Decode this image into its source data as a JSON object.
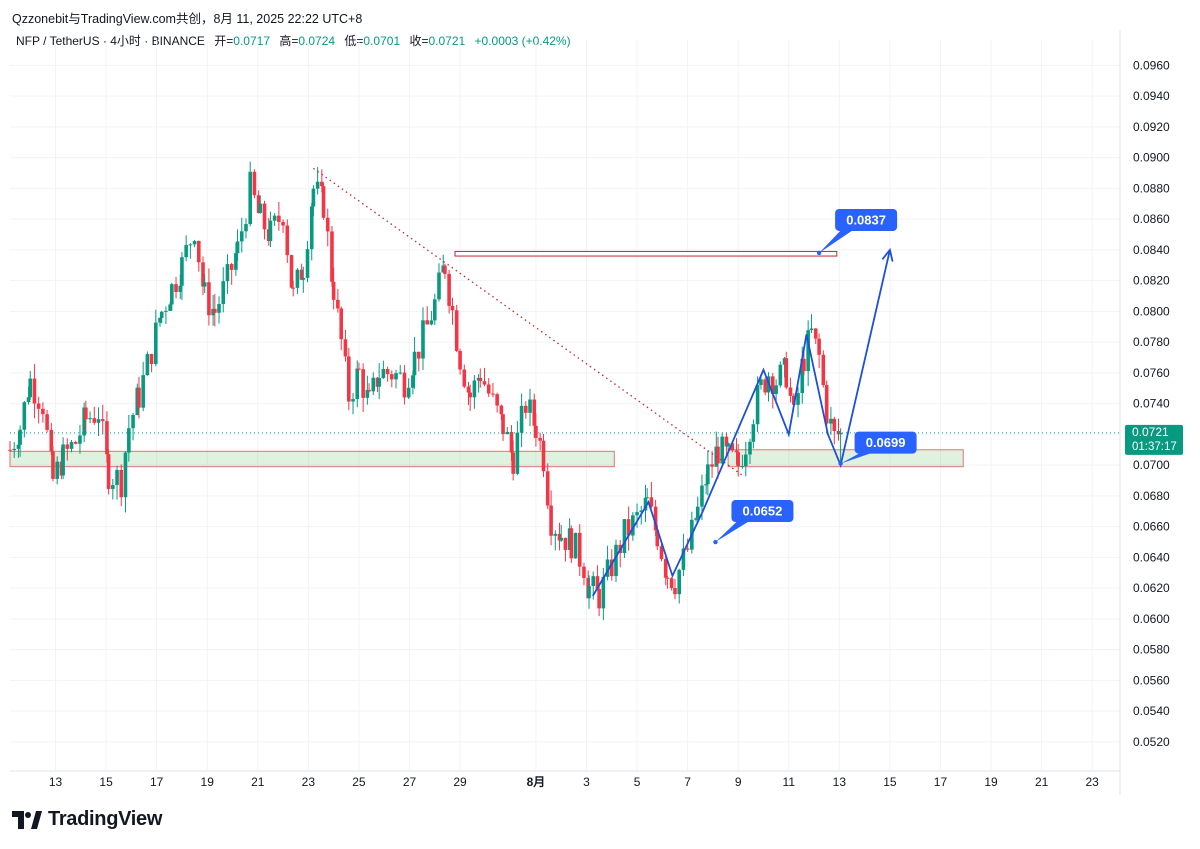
{
  "header": {
    "source_line": "Qzzonebit与TradingView.com共创，8月 11, 2025 22:22 UTC+8",
    "symbol": "NFP / TetherUS · 4小时 · BINANCE",
    "open_label": "开=",
    "open": "0.0717",
    "high_label": "高=",
    "high": "0.0724",
    "low_label": "低=",
    "low": "0.0701",
    "close_label": "收=",
    "close": "0.0721",
    "change": "+0.0003 (+0.42%)"
  },
  "price_badge": {
    "price": "0.0721",
    "countdown": "01:37:17"
  },
  "colors": {
    "up": "#089981",
    "down": "#f23645",
    "accent": "#2962ff",
    "trend": "#c62828"
  },
  "footer": {
    "brand": "TradingView",
    "logo_icon": "tradingview-logo-icon"
  },
  "chart_data": {
    "type": "candlestick",
    "title": "NFP / TetherUS · 4小时 · BINANCE",
    "ylim": [
      0.0505,
      0.097
    ],
    "y_ticks": [
      "0.0960",
      "0.0940",
      "0.0920",
      "0.0900",
      "0.0880",
      "0.0860",
      "0.0840",
      "0.0820",
      "0.0800",
      "0.0780",
      "0.0760",
      "0.0740",
      "0.0720",
      "0.0700",
      "0.0680",
      "0.0660",
      "0.0640",
      "0.0620",
      "0.0600",
      "0.0580",
      "0.0560",
      "0.0540",
      "0.0520"
    ],
    "x_ticks": [
      {
        "label": "13",
        "day": 13
      },
      {
        "label": "15",
        "day": 15
      },
      {
        "label": "17",
        "day": 17
      },
      {
        "label": "19",
        "day": 19
      },
      {
        "label": "21",
        "day": 21
      },
      {
        "label": "23",
        "day": 23
      },
      {
        "label": "25",
        "day": 25
      },
      {
        "label": "27",
        "day": 27
      },
      {
        "label": "29",
        "day": 29
      },
      {
        "label": "8月",
        "day": 32
      },
      {
        "label": "3",
        "day": 34
      },
      {
        "label": "5",
        "day": 36
      },
      {
        "label": "7",
        "day": 38
      },
      {
        "label": "9",
        "day": 40
      },
      {
        "label": "11",
        "day": 42
      },
      {
        "label": "13",
        "day": 44
      },
      {
        "label": "15",
        "day": 46
      },
      {
        "label": "17",
        "day": 48
      },
      {
        "label": "19",
        "day": 50
      },
      {
        "label": "21",
        "day": 52
      },
      {
        "label": "23",
        "day": 54
      }
    ],
    "x_range_days": [
      11.2,
      55.1
    ],
    "candle_anchors": [
      [
        11.2,
        0.071
      ],
      [
        11.6,
        0.0725
      ],
      [
        12.0,
        0.0755
      ],
      [
        12.5,
        0.074
      ],
      [
        12.9,
        0.069
      ],
      [
        13.3,
        0.0705
      ],
      [
        13.8,
        0.0715
      ],
      [
        14.2,
        0.073
      ],
      [
        14.7,
        0.0735
      ],
      [
        15.1,
        0.0695
      ],
      [
        15.6,
        0.069
      ],
      [
        15.9,
        0.0725
      ],
      [
        16.3,
        0.0745
      ],
      [
        16.8,
        0.0775
      ],
      [
        17.2,
        0.08
      ],
      [
        17.6,
        0.0815
      ],
      [
        18.0,
        0.083
      ],
      [
        18.5,
        0.0855
      ],
      [
        18.9,
        0.081
      ],
      [
        19.3,
        0.08
      ],
      [
        19.8,
        0.082
      ],
      [
        20.2,
        0.084
      ],
      [
        20.7,
        0.088
      ],
      [
        21.1,
        0.086
      ],
      [
        21.5,
        0.085
      ],
      [
        22.0,
        0.0865
      ],
      [
        22.4,
        0.081
      ],
      [
        22.8,
        0.083
      ],
      [
        23.2,
        0.088
      ],
      [
        23.6,
        0.087
      ],
      [
        24.0,
        0.0815
      ],
      [
        24.3,
        0.078
      ],
      [
        24.6,
        0.0745
      ],
      [
        25.0,
        0.076
      ],
      [
        25.4,
        0.074
      ],
      [
        25.8,
        0.076
      ],
      [
        26.3,
        0.076
      ],
      [
        26.8,
        0.0755
      ],
      [
        27.2,
        0.077
      ],
      [
        27.7,
        0.079
      ],
      [
        28.0,
        0.0805
      ],
      [
        28.4,
        0.083
      ],
      [
        28.7,
        0.08
      ],
      [
        29.0,
        0.077
      ],
      [
        29.4,
        0.0745
      ],
      [
        29.8,
        0.076
      ],
      [
        30.3,
        0.074
      ],
      [
        30.7,
        0.0725
      ],
      [
        31.1,
        0.0705
      ],
      [
        31.6,
        0.074
      ],
      [
        32.0,
        0.0725
      ],
      [
        32.3,
        0.0705
      ],
      [
        32.6,
        0.0665
      ],
      [
        33.0,
        0.0655
      ],
      [
        33.4,
        0.065
      ],
      [
        33.9,
        0.0635
      ],
      [
        34.1,
        0.062
      ],
      [
        34.5,
        0.0615
      ],
      [
        35.0,
        0.0635
      ],
      [
        35.5,
        0.0655
      ],
      [
        36.0,
        0.0665
      ],
      [
        36.4,
        0.0675
      ],
      [
        36.8,
        0.0655
      ],
      [
        37.2,
        0.063
      ],
      [
        37.5,
        0.0625
      ],
      [
        38.0,
        0.0645
      ],
      [
        38.4,
        0.067
      ],
      [
        38.8,
        0.0695
      ],
      [
        39.2,
        0.071
      ],
      [
        39.6,
        0.0705
      ],
      [
        40.0,
        0.07
      ],
      [
        40.3,
        0.0715
      ],
      [
        40.6,
        0.0735
      ],
      [
        40.9,
        0.075
      ],
      [
        41.2,
        0.076
      ],
      [
        41.5,
        0.0755
      ],
      [
        41.9,
        0.076
      ],
      [
        42.2,
        0.073
      ],
      [
        42.6,
        0.077
      ],
      [
        42.9,
        0.0785
      ],
      [
        43.2,
        0.077
      ],
      [
        43.5,
        0.0735
      ],
      [
        43.8,
        0.0718
      ],
      [
        44.05,
        0.0721
      ]
    ],
    "horizontal_zones": [
      {
        "name": "support-zone-left",
        "from_day": 11.2,
        "to_day": 35.1,
        "y_low": 0.0699,
        "y_high": 0.0709,
        "color": "green"
      },
      {
        "name": "resistance-zone",
        "from_day": 28.8,
        "to_day": 43.9,
        "y_low": 0.0836,
        "y_high": 0.0839,
        "color": "red"
      },
      {
        "name": "support-zone-right",
        "from_day": 39.6,
        "to_day": 48.9,
        "y_low": 0.0699,
        "y_high": 0.071,
        "color": "green"
      }
    ],
    "trendline": {
      "from": [
        23.2,
        0.0893
      ],
      "to": [
        40.2,
        0.0693
      ],
      "style": "dotted"
    },
    "projection_path": [
      [
        34.25,
        0.0615
      ],
      [
        36.45,
        0.0676
      ],
      [
        37.4,
        0.0628
      ],
      [
        38.6,
        0.067
      ],
      [
        41.0,
        0.0762
      ],
      [
        42.0,
        0.072
      ],
      [
        42.7,
        0.0785
      ],
      [
        43.55,
        0.072
      ],
      [
        44.05,
        0.07
      ],
      [
        46.0,
        0.084
      ]
    ],
    "annotations": [
      {
        "label": "0.0652",
        "anchor": [
          39.1,
          0.065
        ]
      },
      {
        "label": "0.0699",
        "anchor": [
          44.05,
          0.0701
        ]
      },
      {
        "label": "0.0837",
        "anchor": [
          43.2,
          0.0838
        ]
      }
    ],
    "current_price": 0.0721
  }
}
